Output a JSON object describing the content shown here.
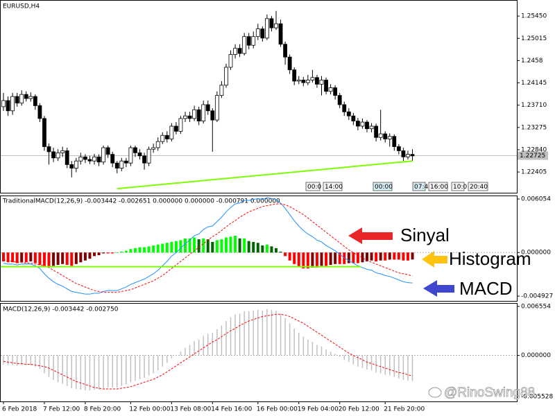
{
  "chart_data": [
    {
      "type": "candlestick",
      "title": "EURUSD,H4",
      "open": [
        1.2368,
        1.238,
        1.236,
        1.2388,
        1.2375,
        1.2392,
        1.2384,
        1.2388,
        1.237,
        1.2345,
        1.229,
        1.228,
        1.2268,
        1.2278,
        1.2282,
        1.2255,
        1.2248,
        1.2262,
        1.227,
        1.2265,
        1.2262,
        1.227,
        1.226,
        1.2288,
        1.2275,
        1.2258,
        1.2248,
        1.2262,
        1.2258,
        1.2288,
        1.2278,
        1.2272,
        1.2258,
        1.2285,
        1.2288,
        1.23,
        1.2312,
        1.2305,
        1.233,
        1.232,
        1.2345,
        1.235,
        1.2345,
        1.2362,
        1.234,
        1.2372,
        1.236,
        1.2342,
        1.239,
        1.241,
        1.2445,
        1.247,
        1.2482,
        1.2472,
        1.2505,
        1.2488,
        1.2505,
        1.252,
        1.2502,
        1.254,
        1.2522,
        1.253,
        1.249,
        1.2465,
        1.244,
        1.2418,
        1.242,
        1.2415,
        1.242,
        1.2425,
        1.2412,
        1.242,
        1.2398,
        1.2405,
        1.239,
        1.2372,
        1.2358,
        1.235,
        1.234,
        1.233,
        1.2338,
        1.2325,
        1.233,
        1.2308,
        1.2315,
        1.2305,
        1.231,
        1.229,
        1.2282,
        1.227,
        1.2275
      ],
      "high": [
        1.2395,
        1.2388,
        1.2395,
        1.2395,
        1.24,
        1.2398,
        1.2396,
        1.2392,
        1.2375,
        1.235,
        1.2296,
        1.2288,
        1.2285,
        1.229,
        1.2288,
        1.2262,
        1.2268,
        1.2278,
        1.2275,
        1.2272,
        1.2276,
        1.2275,
        1.2292,
        1.2292,
        1.228,
        1.2262,
        1.2268,
        1.2268,
        1.2292,
        1.2292,
        1.2285,
        1.2278,
        1.229,
        1.2296,
        1.2308,
        1.2318,
        1.232,
        1.2336,
        1.2338,
        1.235,
        1.2358,
        1.2358,
        1.237,
        1.2368,
        1.238,
        1.238,
        1.2365,
        1.2398,
        1.2418,
        1.2452,
        1.2478,
        1.249,
        1.249,
        1.2512,
        1.2512,
        1.2515,
        1.253,
        1.2525,
        1.2548,
        1.2545,
        1.2555,
        1.2538,
        1.2495,
        1.247,
        1.2445,
        1.2428,
        1.2426,
        1.243,
        1.244,
        1.243,
        1.2428,
        1.2425,
        1.2412,
        1.241,
        1.2395,
        1.2378,
        1.2365,
        1.2356,
        1.2346,
        1.2345,
        1.2342,
        1.2336,
        1.2335,
        1.2362,
        1.232,
        1.2316,
        1.2314,
        1.2295,
        1.2288,
        1.2282,
        1.2285
      ],
      "low": [
        1.236,
        1.235,
        1.2352,
        1.2368,
        1.237,
        1.2378,
        1.2378,
        1.2362,
        1.2338,
        1.2282,
        1.2255,
        1.226,
        1.2262,
        1.227,
        1.2248,
        1.223,
        1.224,
        1.2255,
        1.2258,
        1.2256,
        1.2255,
        1.2252,
        1.2255,
        1.2268,
        1.225,
        1.2238,
        1.2242,
        1.225,
        1.2252,
        1.227,
        1.2265,
        1.2245,
        1.2252,
        1.2278,
        1.2282,
        1.2295,
        1.2298,
        1.23,
        1.2314,
        1.2315,
        1.2338,
        1.2338,
        1.234,
        1.2332,
        1.2335,
        1.2352,
        1.228,
        1.2338,
        1.2385,
        1.2405,
        1.244,
        1.2462,
        1.2465,
        1.2468,
        1.248,
        1.2482,
        1.2498,
        1.2495,
        1.2498,
        1.2515,
        1.2518,
        1.2485,
        1.245,
        1.2432,
        1.241,
        1.2412,
        1.2408,
        1.241,
        1.2415,
        1.2405,
        1.239,
        1.2392,
        1.2392,
        1.2382,
        1.2365,
        1.235,
        1.2342,
        1.2332,
        1.2322,
        1.2325,
        1.2318,
        1.2318,
        1.23,
        1.2302,
        1.2298,
        1.229,
        1.2282,
        1.2275,
        1.2262,
        1.2265,
        1.2262
      ],
      "close": [
        1.238,
        1.236,
        1.2388,
        1.2375,
        1.2392,
        1.2384,
        1.2388,
        1.237,
        1.2345,
        1.229,
        1.228,
        1.2268,
        1.2278,
        1.2282,
        1.2255,
        1.2248,
        1.2262,
        1.227,
        1.2265,
        1.2262,
        1.227,
        1.226,
        1.2288,
        1.2275,
        1.2258,
        1.2248,
        1.2262,
        1.2258,
        1.2288,
        1.2278,
        1.2272,
        1.2258,
        1.2285,
        1.2288,
        1.23,
        1.2312,
        1.2305,
        1.233,
        1.232,
        1.2345,
        1.235,
        1.2345,
        1.2362,
        1.234,
        1.2372,
        1.236,
        1.2342,
        1.239,
        1.241,
        1.2445,
        1.247,
        1.2482,
        1.2472,
        1.2505,
        1.2488,
        1.2505,
        1.252,
        1.2502,
        1.254,
        1.2522,
        1.253,
        1.249,
        1.2465,
        1.244,
        1.2418,
        1.242,
        1.2415,
        1.242,
        1.2425,
        1.2412,
        1.242,
        1.2398,
        1.2405,
        1.239,
        1.2372,
        1.2358,
        1.235,
        1.234,
        1.233,
        1.2338,
        1.2325,
        1.233,
        1.2308,
        1.2315,
        1.2305,
        1.231,
        1.229,
        1.2282,
        1.227,
        1.2275,
        1.2272
      ],
      "bull_color": "#ffffff",
      "bear_color": "#000000",
      "ylim": [
        1.22,
        1.2575
      ],
      "yticks": [
        {
          "value": 1.2545,
          "label": "1.25450"
        },
        1.25015,
        1.2458,
        1.24145,
        {
          "value": 1.2371,
          "label": "1.23710"
        },
        1.23275,
        {
          "value": 1.2284,
          "label": "1.22840"
        },
        1.22405
      ],
      "bid": 1.22725,
      "trendline": {
        "x": [
          25,
          90
        ],
        "y": [
          1.2208,
          1.2262
        ],
        "color": "#7cfc00"
      },
      "time_markers": [
        "00:0",
        "14:00",
        "00:00",
        "07:4",
        "16:00",
        "10:0",
        "20:40"
      ]
    },
    {
      "type": "macd",
      "title": "TraditionalMACD(12,26,9) -0.003442 -0.002651 0.000000 0.000000 -0.000791 0.000000",
      "ylim": [
        -0.00547,
        0.00637
      ],
      "yticks": [
        0.006054,
        {
          "value": 0,
          "label": "0.000000"
        },
        -0.004927
      ],
      "zero_line": true,
      "level": -0.0016,
      "level_color": "#7cfc00",
      "series": [
        {
          "kind": "histogram",
          "colors": {
            "rising_positive": "#00ff00",
            "falling_positive": "#006400",
            "falling_negative": "#ff0000",
            "rising_negative": "#800000"
          },
          "values": [
            -0.001,
            -0.0011,
            -0.0011,
            -0.0012,
            -0.0011,
            -0.0011,
            -0.001,
            -0.0012,
            -0.0014,
            -0.0015,
            -0.0016,
            -0.0015,
            -0.0014,
            -0.0013,
            -0.0014,
            -0.0015,
            -0.0013,
            -0.0011,
            -0.0009,
            -0.0007,
            -0.0004,
            -0.0003,
            -0.0001,
            -0.0001,
            -0.0001,
            0.0,
            0.0001,
            0.0002,
            0.0004,
            0.0005,
            0.0006,
            0.0006,
            0.0007,
            0.0008,
            0.0009,
            0.001,
            0.0011,
            0.0012,
            0.0013,
            0.0014,
            0.0016,
            0.0016,
            0.0017,
            0.0015,
            0.0016,
            0.0015,
            0.0012,
            0.0014,
            0.0015,
            0.0017,
            0.0018,
            0.0019,
            0.0016,
            0.0016,
            0.0013,
            0.0012,
            0.0011,
            0.0008,
            0.0009,
            0.0007,
            0.0005,
            0.0001,
            -0.0004,
            -0.0009,
            -0.0013,
            -0.0016,
            -0.0018,
            -0.0018,
            -0.0017,
            -0.0017,
            -0.0015,
            -0.0015,
            -0.0014,
            -0.0013,
            -0.0013,
            -0.0013,
            -0.0012,
            -0.0012,
            -0.0012,
            -0.0011,
            -0.001,
            -0.0009,
            -0.001,
            -0.0009,
            -0.0009,
            -0.0008,
            -0.0008,
            -0.0008,
            -0.0009,
            -0.0009,
            -0.000791
          ]
        },
        {
          "kind": "line",
          "color": "#1e90ff",
          "dash": false,
          "values": [
            -0.0012,
            -0.0013,
            -0.0013,
            -0.0014,
            -0.0013,
            -0.0013,
            -0.0013,
            -0.0015,
            -0.0018,
            -0.0024,
            -0.0029,
            -0.0033,
            -0.0036,
            -0.0038,
            -0.0041,
            -0.0044,
            -0.0045,
            -0.0046,
            -0.0047,
            -0.0047,
            -0.0046,
            -0.0046,
            -0.0044,
            -0.0043,
            -0.0043,
            -0.0043,
            -0.0041,
            -0.0039,
            -0.0036,
            -0.0034,
            -0.0032,
            -0.003,
            -0.0027,
            -0.0024,
            -0.002,
            -0.0015,
            -0.001,
            -0.0004,
            0.0,
            0.0005,
            0.001,
            0.0014,
            0.0019,
            0.0021,
            0.0026,
            0.0029,
            0.003,
            0.0035,
            0.004,
            0.0046,
            0.0051,
            0.0055,
            0.0056,
            0.0059,
            0.0059,
            0.006,
            0.0061,
            0.006,
            0.0062,
            0.0061,
            0.006,
            0.0056,
            0.005,
            0.0043,
            0.0036,
            0.003,
            0.0025,
            0.0021,
            0.0018,
            0.0014,
            0.0012,
            0.0008,
            0.0005,
            0.0002,
            -0.0002,
            -0.0006,
            -0.0009,
            -0.0012,
            -0.0015,
            -0.0017,
            -0.0019,
            -0.002,
            -0.0023,
            -0.0024,
            -0.0026,
            -0.0027,
            -0.0029,
            -0.0031,
            -0.0033,
            -0.0034,
            -0.003442
          ]
        },
        {
          "kind": "line",
          "color": "#ff0000",
          "dash": true,
          "values": [
            -0.0008,
            -0.0009,
            -0.001,
            -0.0011,
            -0.0011,
            -0.0012,
            -0.0012,
            -0.0013,
            -0.0014,
            -0.0015,
            -0.0017,
            -0.002,
            -0.0023,
            -0.0026,
            -0.0029,
            -0.0032,
            -0.0035,
            -0.0037,
            -0.0039,
            -0.0041,
            -0.0043,
            -0.0044,
            -0.0045,
            -0.0045,
            -0.0045,
            -0.0045,
            -0.0044,
            -0.0043,
            -0.0042,
            -0.004,
            -0.0038,
            -0.0036,
            -0.0034,
            -0.0032,
            -0.0029,
            -0.0026,
            -0.0022,
            -0.0018,
            -0.0014,
            -0.001,
            -0.0006,
            -0.0002,
            0.0002,
            0.0006,
            0.001,
            0.0014,
            0.0018,
            0.0021,
            0.0025,
            0.0029,
            0.0033,
            0.0036,
            0.004,
            0.0043,
            0.0046,
            0.0048,
            0.005,
            0.0052,
            0.0053,
            0.0054,
            0.0055,
            0.0055,
            0.0054,
            0.0052,
            0.0049,
            0.0046,
            0.0043,
            0.0039,
            0.0035,
            0.0031,
            0.0027,
            0.0023,
            0.0019,
            0.0015,
            0.0011,
            0.0007,
            0.0003,
            0.0,
            -0.0003,
            -0.0006,
            -0.0009,
            -0.0011,
            -0.0013,
            -0.0015,
            -0.0017,
            -0.0019,
            -0.0021,
            -0.0023,
            -0.0024,
            -0.0025,
            -0.002651
          ]
        }
      ],
      "annotations": [
        {
          "text": "Sinyal",
          "color": "#e8262a"
        },
        {
          "text": "Histogram",
          "color": "#ffc20e"
        },
        {
          "text": "MACD",
          "color": "#3f48cc"
        }
      ]
    },
    {
      "type": "macd",
      "title": "MACD(12,26,9) -0.003442 -0.002750",
      "ylim": [
        -0.00617,
        0.00692
      ],
      "yticks": [
        0.006554,
        {
          "value": 0,
          "label": "0.000000"
        },
        -0.005528
      ],
      "zero_line": true,
      "series": [
        {
          "kind": "bar",
          "color": "#c0c0c0",
          "values": [
            -0.0012,
            -0.0013,
            -0.0013,
            -0.0014,
            -0.0013,
            -0.0013,
            -0.0013,
            -0.0015,
            -0.0018,
            -0.0024,
            -0.0029,
            -0.0033,
            -0.0036,
            -0.0038,
            -0.0041,
            -0.0044,
            -0.0045,
            -0.0046,
            -0.0047,
            -0.0047,
            -0.0046,
            -0.0046,
            -0.0044,
            -0.0043,
            -0.0043,
            -0.0043,
            -0.0041,
            -0.0039,
            -0.0036,
            -0.0034,
            -0.0032,
            -0.003,
            -0.0027,
            -0.0024,
            -0.002,
            -0.0015,
            -0.001,
            -0.0004,
            0.0,
            0.0005,
            0.001,
            0.0014,
            0.0019,
            0.0021,
            0.0026,
            0.0029,
            0.003,
            0.0035,
            0.004,
            0.0046,
            0.0051,
            0.0055,
            0.0056,
            0.0059,
            0.0059,
            0.006,
            0.0061,
            0.006,
            0.0062,
            0.0061,
            0.006,
            0.0056,
            0.005,
            0.0043,
            0.0036,
            0.003,
            0.0025,
            0.0021,
            0.0018,
            0.0014,
            0.0012,
            0.0008,
            0.0005,
            0.0002,
            -0.0002,
            -0.0006,
            -0.0009,
            -0.0012,
            -0.0015,
            -0.0017,
            -0.0019,
            -0.002,
            -0.0023,
            -0.0024,
            -0.0026,
            -0.0027,
            -0.0029,
            -0.0031,
            -0.0033,
            -0.0034,
            -0.003442
          ]
        },
        {
          "kind": "line",
          "color": "#ff0000",
          "dash": true,
          "values": [
            -0.0008,
            -0.0009,
            -0.001,
            -0.0011,
            -0.0011,
            -0.0012,
            -0.0012,
            -0.0013,
            -0.0014,
            -0.0015,
            -0.0017,
            -0.002,
            -0.0023,
            -0.0026,
            -0.0029,
            -0.0032,
            -0.0035,
            -0.0037,
            -0.0039,
            -0.0041,
            -0.0043,
            -0.0044,
            -0.0045,
            -0.0045,
            -0.0045,
            -0.0045,
            -0.0044,
            -0.0043,
            -0.0042,
            -0.004,
            -0.0038,
            -0.0036,
            -0.0034,
            -0.0032,
            -0.0029,
            -0.0026,
            -0.0022,
            -0.0018,
            -0.0014,
            -0.001,
            -0.0006,
            -0.0002,
            0.0002,
            0.0006,
            0.001,
            0.0014,
            0.0018,
            0.0021,
            0.0025,
            0.0029,
            0.0033,
            0.0036,
            0.004,
            0.0043,
            0.0046,
            0.0048,
            0.005,
            0.0052,
            0.0053,
            0.0054,
            0.0055,
            0.0055,
            0.0054,
            0.0052,
            0.0049,
            0.0046,
            0.0043,
            0.0039,
            0.0035,
            0.0031,
            0.0027,
            0.0023,
            0.0019,
            0.0015,
            0.0011,
            0.0007,
            0.0003,
            0.0,
            -0.0003,
            -0.0006,
            -0.0009,
            -0.0011,
            -0.0013,
            -0.0015,
            -0.0017,
            -0.0019,
            -0.0021,
            -0.0023,
            -0.0024,
            -0.0026,
            -0.00275
          ]
        }
      ],
      "xticks": [
        {
          "value": 0,
          "label": "6 Feb 2018"
        },
        {
          "value": 9,
          "label": "7 Feb 12:00"
        },
        {
          "value": 18,
          "label": "8 Feb 20:00"
        },
        {
          "value": 28,
          "label": "12 Feb 00:00"
        },
        {
          "value": 37,
          "label": "13 Feb 08:00"
        },
        {
          "value": 46,
          "label": "14 Feb 16:00"
        },
        {
          "value": 56,
          "label": "16 Feb 00:00"
        },
        {
          "value": 65,
          "label": "19 Feb 04:00"
        },
        {
          "value": 74,
          "label": "20 Feb 12:00"
        },
        {
          "value": 84,
          "label": "21 Feb 20:00"
        }
      ],
      "watermark": "@RinoSwing88"
    }
  ]
}
